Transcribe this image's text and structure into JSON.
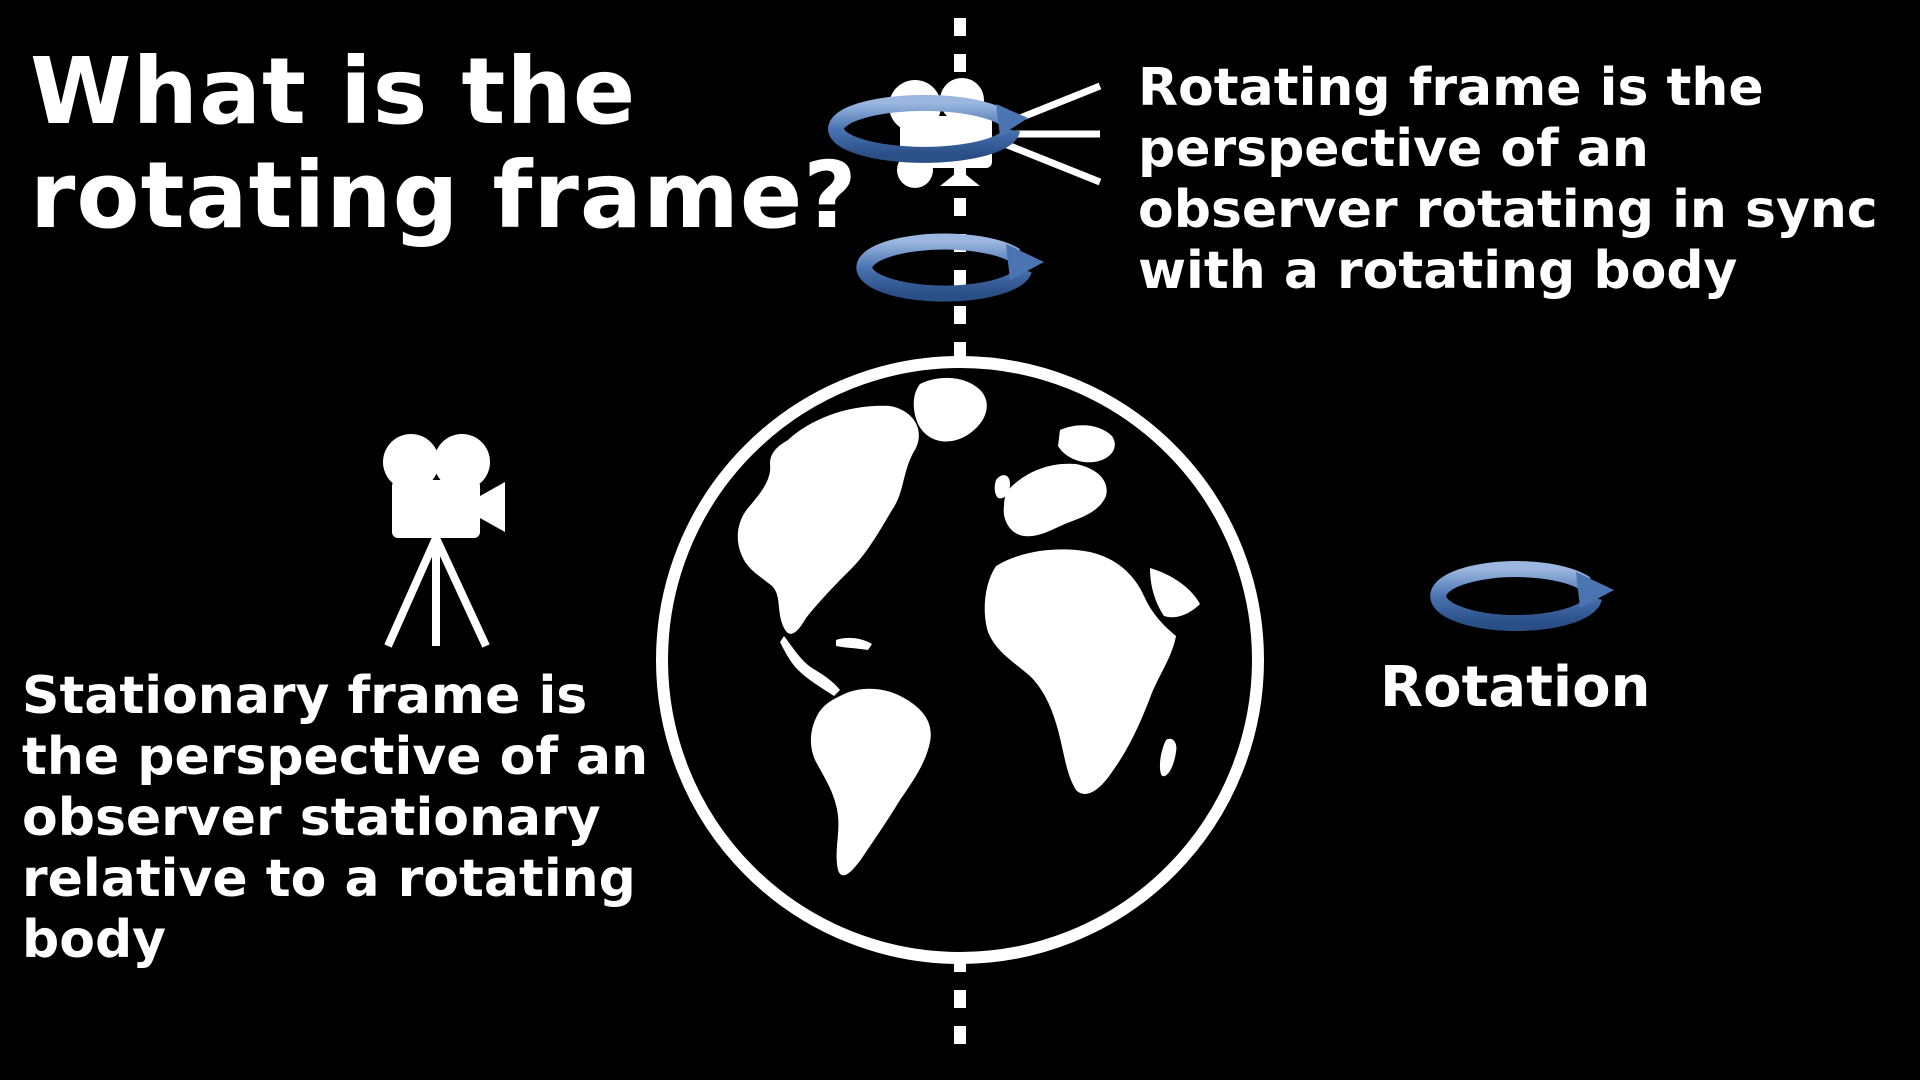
{
  "title": {
    "line1": "What is the",
    "line2": "rotating frame?"
  },
  "rotating_frame_text": [
    "Rotating frame is the",
    "perspective of an",
    "observer rotating in sync",
    "with a rotating body"
  ],
  "stationary_frame_text": [
    "Stationary frame is",
    "the perspective of an",
    "observer stationary",
    "relative to a rotating",
    "body"
  ],
  "rotation_label": "Rotation",
  "icons": [
    "movie-camera-icon",
    "camera-tripod-icon",
    "globe-icon",
    "rotation-arrow-icon",
    "rotation-axis"
  ],
  "colors": {
    "background": "#000000",
    "text": "#ffffff",
    "arrow": "#4a74b2"
  }
}
